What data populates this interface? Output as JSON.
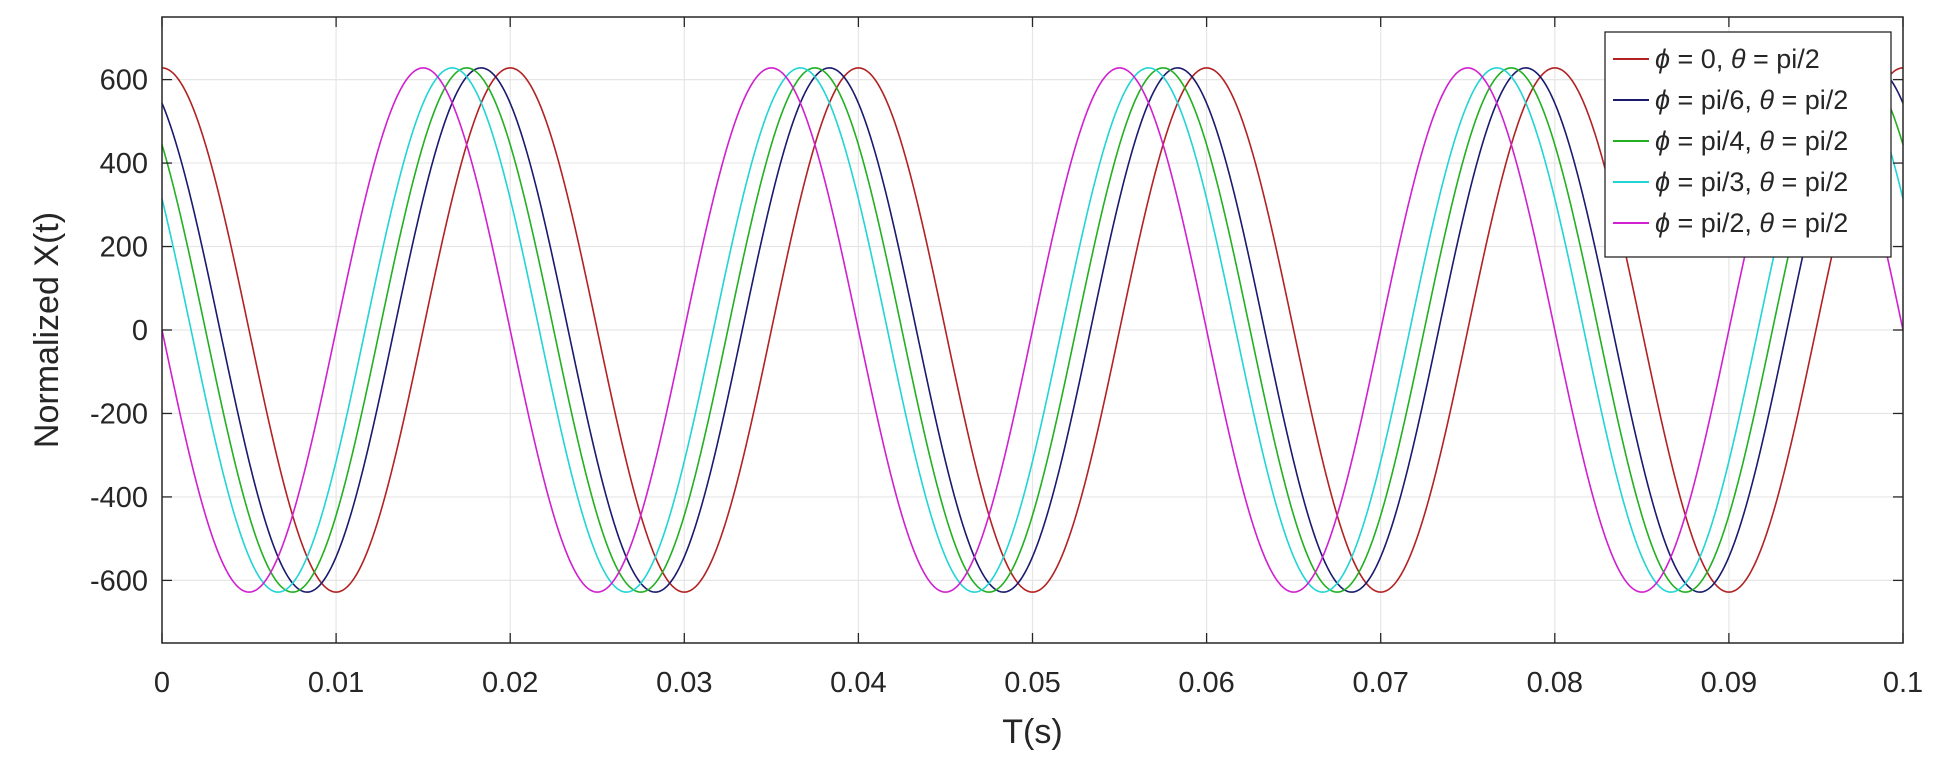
{
  "chart_data": {
    "type": "line",
    "xlabel": "T(s)",
    "ylabel": "Normalized X(t)",
    "xlim": [
      0,
      0.1
    ],
    "ylim": [
      -750,
      750
    ],
    "xticks": [
      0,
      0.01,
      0.02,
      0.03,
      0.04,
      0.05,
      0.06,
      0.07,
      0.08,
      0.09,
      0.1
    ],
    "xtick_labels": [
      "0",
      "0.01",
      "0.02",
      "0.03",
      "0.04",
      "0.05",
      "0.06",
      "0.07",
      "0.08",
      "0.09",
      "0.1"
    ],
    "yticks": [
      600,
      400,
      200,
      0,
      -200,
      -400,
      -600
    ],
    "ytick_labels": [
      "600",
      "400",
      "200",
      "0",
      "-200",
      "-400",
      "-600"
    ],
    "grid": true,
    "legend_position": "top-right",
    "waveform": {
      "amplitude": 628,
      "frequency_hz": 50,
      "phase_shift_s": [
        0.0,
        0.00167,
        0.0025,
        0.00333,
        0.005
      ]
    },
    "series": [
      {
        "label_parts": [
          "ϕ",
          " = 0, ",
          "θ",
          " = pi/2"
        ],
        "color": "#b22222"
      },
      {
        "label_parts": [
          "ϕ",
          " = pi/6, ",
          "θ",
          " = pi/2"
        ],
        "color": "#1a1a6e"
      },
      {
        "label_parts": [
          "ϕ",
          " = pi/4, ",
          "θ",
          " = pi/2"
        ],
        "color": "#22b022"
      },
      {
        "label_parts": [
          "ϕ",
          " = pi/3, ",
          "θ",
          " = pi/2"
        ],
        "color": "#22d4d4"
      },
      {
        "label_parts": [
          "ϕ",
          " = pi/2, ",
          "θ",
          " = pi/2"
        ],
        "color": "#d020d0"
      }
    ]
  }
}
